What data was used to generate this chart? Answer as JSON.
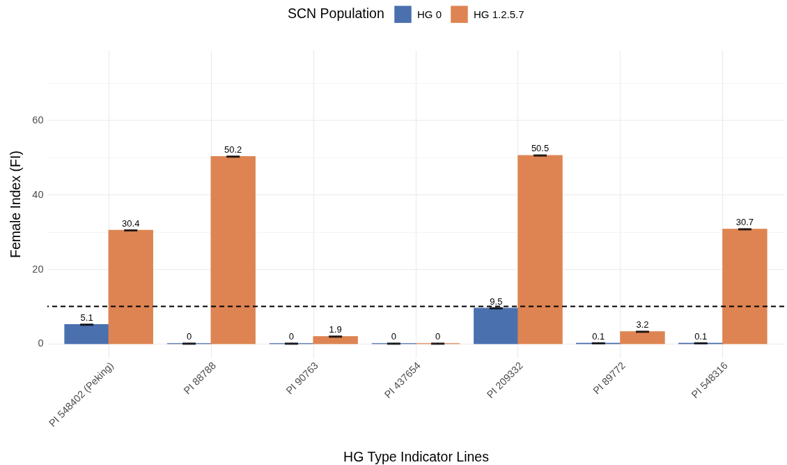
{
  "chart_data": {
    "type": "bar",
    "xlabel": "HG Type Indicator Lines",
    "ylabel": "Female Index (FI)",
    "legend_title": "SCN Population",
    "categories": [
      "PI 548402 (Peking)",
      "PI 88788",
      "PI 90763",
      "PI 437654",
      "PI 209332",
      "PI 89772",
      "PI 548316"
    ],
    "series": [
      {
        "name": "HG 0",
        "color": "#4a70ae",
        "values": [
          5.1,
          0,
          0,
          0,
          9.5,
          0.1,
          0.1
        ],
        "errors": [
          0.1,
          0.1,
          0.1,
          0.1,
          0.1,
          0.1,
          0.1
        ]
      },
      {
        "name": "HG 1.2.5.7",
        "color": "#de8452",
        "values": [
          30.4,
          50.2,
          1.9,
          0,
          50.5,
          3.2,
          30.7
        ],
        "errors": [
          0.1,
          0.1,
          0.1,
          0.1,
          0.1,
          0.1,
          0.1
        ]
      }
    ],
    "ylim": [
      -3.75,
      78.75
    ],
    "yticks": [
      0,
      {
        "value": 10,
        "label": null
      },
      20,
      {
        "value": 30,
        "label": null
      },
      40,
      {
        "value": 50,
        "label": null
      },
      60,
      {
        "value": 70,
        "label": null
      }
    ],
    "ref_lines": [
      {
        "axis": "y",
        "value": 10,
        "line_style": "dashed",
        "color": "#000000"
      }
    ],
    "grid": true,
    "legend": "top",
    "data_labels": true
  }
}
